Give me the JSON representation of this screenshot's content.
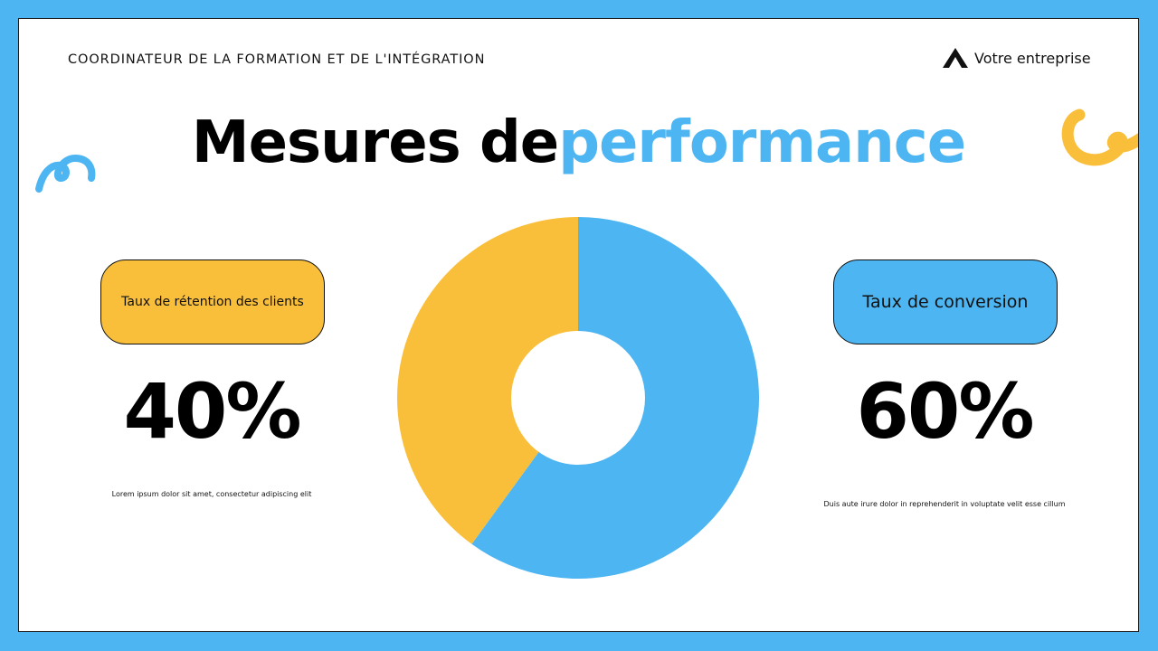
{
  "header": {
    "title": "COORDINATEUR DE LA FORMATION ET DE L'INTÉGRATION",
    "logo_text": "Votre entreprise",
    "logo_icon": "triangle-logo-icon"
  },
  "title": {
    "part1": "Mesures de",
    "part2": "performance"
  },
  "metrics": [
    {
      "label": "Taux de rétention des clients",
      "value": "40%",
      "description": "Lorem ipsum dolor sit amet, consectetur adipiscing elit",
      "color": "#f9bf3b"
    },
    {
      "label": "Taux de conversion",
      "value": "60%",
      "description": "Duis aute irure dolor in reprehenderit in voluptate velit esse cillum",
      "color": "#4db5f2"
    }
  ],
  "colors": {
    "background": "#4db5f2",
    "yellow": "#f9bf3b",
    "blue": "#4db5f2"
  },
  "chart_data": {
    "type": "pie",
    "title": "Mesures de performance",
    "categories": [
      "Taux de rétention des clients",
      "Taux de conversion"
    ],
    "values": [
      40,
      60
    ],
    "colors": [
      "#f9bf3b",
      "#4db5f2"
    ],
    "donut": true,
    "legend": "none"
  }
}
